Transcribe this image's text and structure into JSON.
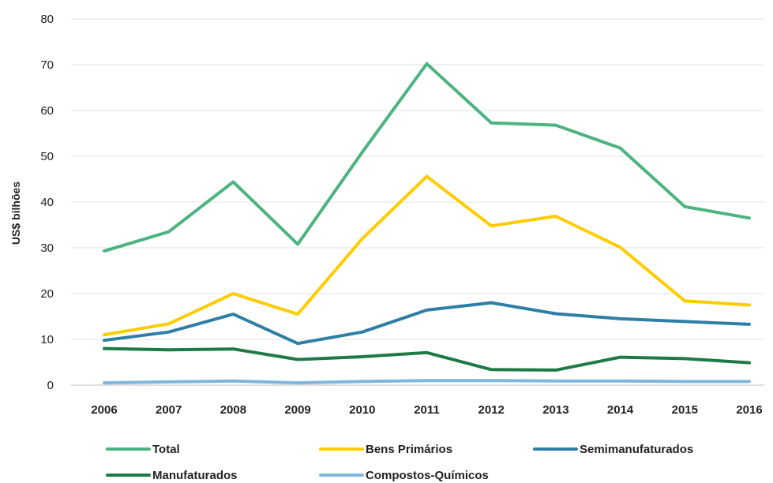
{
  "chart_data": {
    "type": "line",
    "title": "",
    "xlabel": "",
    "ylabel": "US$ bilhões",
    "categories": [
      "2006",
      "2007",
      "2008",
      "2009",
      "2010",
      "2011",
      "2012",
      "2013",
      "2014",
      "2015",
      "2016"
    ],
    "yticks": [
      "0",
      "10",
      "20",
      "30",
      "40",
      "50",
      "60",
      "70",
      "80"
    ],
    "ylim": [
      0,
      80
    ],
    "grid": true,
    "legend_position": "bottom",
    "series": [
      {
        "name": "Total",
        "color": "#4db380",
        "values": [
          29.3,
          33.5,
          44.4,
          30.8,
          50.9,
          70.2,
          57.3,
          56.8,
          51.8,
          39.0,
          36.5
        ]
      },
      {
        "name": "Bens Primários",
        "color": "#ffcc00",
        "values": [
          11.0,
          13.4,
          20.0,
          15.5,
          32.0,
          45.6,
          34.8,
          36.9,
          30.1,
          18.4,
          17.5
        ]
      },
      {
        "name": "Semimanufaturados",
        "color": "#2e7fa6",
        "values": [
          9.8,
          11.6,
          15.5,
          9.1,
          11.6,
          16.4,
          18.0,
          15.6,
          14.5,
          13.9,
          13.3
        ]
      },
      {
        "name": "Manufaturados",
        "color": "#1e7a45",
        "values": [
          8.0,
          7.7,
          7.9,
          5.6,
          6.2,
          7.1,
          3.4,
          3.3,
          6.1,
          5.8,
          4.9
        ]
      },
      {
        "name": "Compostos-Químicos",
        "color": "#7eb6de",
        "values": [
          0.5,
          0.7,
          0.9,
          0.5,
          0.8,
          1.0,
          1.0,
          0.9,
          0.9,
          0.8,
          0.8
        ]
      }
    ]
  }
}
